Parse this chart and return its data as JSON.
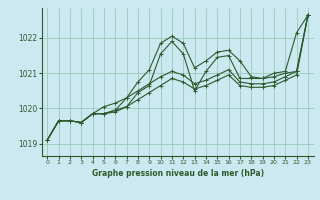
{
  "title": "Graphe pression niveau de la mer (hPa)",
  "bg_color": "#cce8f0",
  "grid_color": "#99ccbb",
  "line_color": "#2d5a2d",
  "marker_color": "#2d5a2d",
  "ylim": [
    1018.65,
    1022.85
  ],
  "xlim": [
    -0.5,
    23.5
  ],
  "yticks": [
    1019,
    1020,
    1021,
    1022
  ],
  "xticks": [
    0,
    1,
    2,
    3,
    4,
    5,
    6,
    7,
    8,
    9,
    10,
    11,
    12,
    13,
    14,
    15,
    16,
    17,
    18,
    19,
    20,
    21,
    22,
    23
  ],
  "series": [
    [
      1019.1,
      1019.65,
      1019.65,
      1019.6,
      1019.85,
      1019.85,
      1019.95,
      1020.3,
      1020.75,
      1021.1,
      1021.85,
      1022.05,
      1021.85,
      1021.15,
      1021.35,
      1021.6,
      1021.65,
      1021.35,
      1020.9,
      1020.85,
      1021.0,
      1021.05,
      1022.15,
      1022.65
    ],
    [
      1019.1,
      1019.65,
      1019.65,
      1019.6,
      1019.85,
      1019.85,
      1019.95,
      1020.05,
      1020.45,
      1020.65,
      1021.55,
      1021.9,
      1021.55,
      1020.5,
      1021.05,
      1021.45,
      1021.5,
      1020.85,
      1020.85,
      1020.85,
      1020.9,
      1021.0,
      1021.05,
      1022.65
    ],
    [
      1019.1,
      1019.65,
      1019.65,
      1019.6,
      1019.85,
      1020.05,
      1020.15,
      1020.3,
      1020.5,
      1020.7,
      1020.9,
      1021.05,
      1020.95,
      1020.7,
      1020.8,
      1020.95,
      1021.1,
      1020.75,
      1020.7,
      1020.7,
      1020.75,
      1020.9,
      1021.05,
      1022.65
    ],
    [
      1019.1,
      1019.65,
      1019.65,
      1019.6,
      1019.85,
      1019.85,
      1019.9,
      1020.05,
      1020.25,
      1020.45,
      1020.65,
      1020.85,
      1020.75,
      1020.55,
      1020.65,
      1020.8,
      1020.95,
      1020.65,
      1020.6,
      1020.6,
      1020.65,
      1020.8,
      1020.95,
      1022.65
    ]
  ]
}
